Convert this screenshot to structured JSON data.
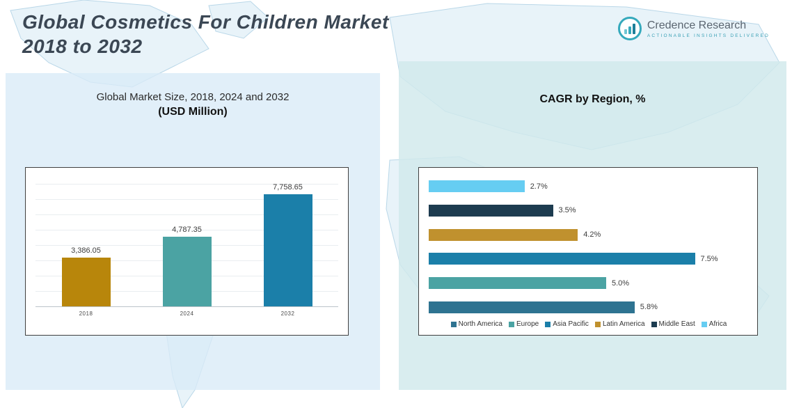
{
  "header": {
    "title_line1": "Global Cosmetics For Children Market",
    "title_line2": "2018 to 2032",
    "logo": {
      "name": "Credence Research",
      "tagline": "Actionable Insights Delivered"
    }
  },
  "left_panel": {
    "title_line1": "Global Market Size, 2018, 2024 and 2032",
    "title_line2": "(USD Million)"
  },
  "right_panel": {
    "title": "CAGR by Region, %"
  },
  "colors": {
    "gold": "#b8860b",
    "teal": "#4ba3a3",
    "blue": "#1b7fa9",
    "navy": "#1d3c50",
    "sky": "#66cdf2",
    "steel": "#2e7391"
  },
  "chart_data": [
    {
      "type": "bar",
      "title": "Global Market Size, 2018, 2024 and 2032 (USD Million)",
      "categories": [
        "2018",
        "2024",
        "2032"
      ],
      "values": [
        3386.05,
        4787.35,
        7758.65
      ],
      "value_labels": [
        "3,386.05",
        "4,787.35",
        "7,758.65"
      ],
      "colors": [
        "#b8860b",
        "#4ba3a3",
        "#1b7fa9"
      ],
      "xlabel": "",
      "ylabel": "USD Million",
      "ylim": [
        0,
        8000
      ],
      "grid": true
    },
    {
      "type": "bar",
      "orientation": "horizontal",
      "title": "CAGR by Region, %",
      "categories": [
        "Africa",
        "Middle East",
        "Latin America",
        "Asia Pacific",
        "Europe",
        "North America"
      ],
      "values": [
        2.7,
        3.5,
        4.2,
        7.5,
        5.0,
        5.8
      ],
      "value_labels": [
        "2.7%",
        "3.5%",
        "4.2%",
        "7.5%",
        "5.0%",
        "5.8%"
      ],
      "colors": [
        "#66cdf2",
        "#1d3c50",
        "#c0912e",
        "#1b7fa9",
        "#4ba3a3",
        "#2e7391"
      ],
      "xlim": [
        0,
        8
      ],
      "legend_position": "bottom",
      "legend": [
        {
          "label": "North America",
          "color": "#2e7391"
        },
        {
          "label": "Europe",
          "color": "#4ba3a3"
        },
        {
          "label": "Asia Pacific",
          "color": "#1b7fa9"
        },
        {
          "label": "Latin America",
          "color": "#c0912e"
        },
        {
          "label": "Middle East",
          "color": "#1d3c50"
        },
        {
          "label": "Africa",
          "color": "#66cdf2"
        }
      ]
    }
  ]
}
